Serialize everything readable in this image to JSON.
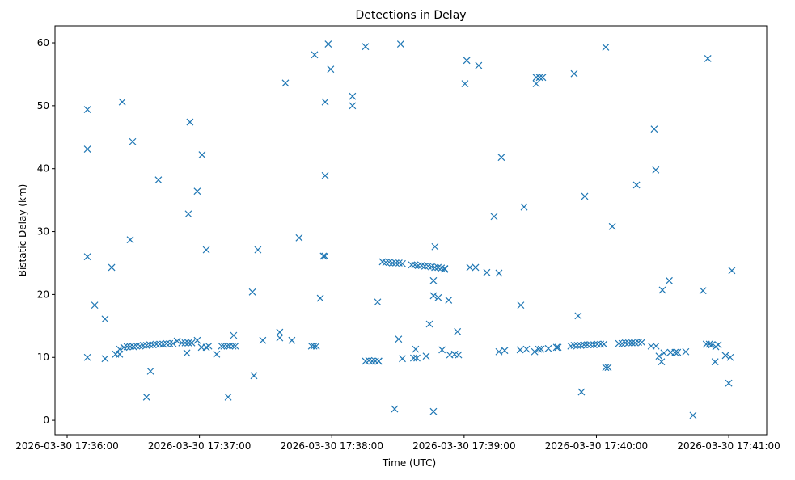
{
  "chart_data": {
    "type": "scatter",
    "title": "Detections in Delay",
    "xlabel": "Time (UTC)",
    "ylabel": "Bistatic Delay (km)",
    "x_units": "seconds after 2026-03-30 17:36:00",
    "xlim": [
      -5.5,
      317.2
    ],
    "ylim": [
      -2.3,
      62.7
    ],
    "grid": false,
    "marker": "x",
    "color": "#1f77b4",
    "x_ticks": [
      {
        "value": 0,
        "label": "2026-03-30 17:36:00"
      },
      {
        "value": 60,
        "label": "2026-03-30 17:37:00"
      },
      {
        "value": 120,
        "label": "2026-03-30 17:38:00"
      },
      {
        "value": 180,
        "label": "2026-03-30 17:39:00"
      },
      {
        "value": 240,
        "label": "2026-03-30 17:40:00"
      },
      {
        "value": 300,
        "label": "2026-03-30 17:41:00"
      }
    ],
    "y_ticks": [
      {
        "value": 0,
        "label": "0"
      },
      {
        "value": 10,
        "label": "10"
      },
      {
        "value": 20,
        "label": "20"
      },
      {
        "value": 30,
        "label": "30"
      },
      {
        "value": 40,
        "label": "40"
      },
      {
        "value": 50,
        "label": "50"
      },
      {
        "value": 60,
        "label": "60"
      }
    ],
    "points": [
      [
        9.2,
        49.4
      ],
      [
        9.2,
        43.1
      ],
      [
        9.2,
        26.0
      ],
      [
        9.2,
        10.0
      ],
      [
        12.5,
        18.3
      ],
      [
        17.2,
        16.1
      ],
      [
        17.2,
        9.8
      ],
      [
        20.2,
        24.3
      ],
      [
        22.0,
        10.5
      ],
      [
        23.8,
        10.5
      ],
      [
        23.8,
        11.3
      ],
      [
        25.0,
        50.6
      ],
      [
        28.6,
        28.7
      ],
      [
        29.7,
        44.3
      ],
      [
        25.7,
        11.6
      ],
      [
        27.2,
        11.7
      ],
      [
        28.6,
        11.7
      ],
      [
        30.1,
        11.7
      ],
      [
        31.5,
        11.8
      ],
      [
        33.0,
        11.8
      ],
      [
        34.5,
        11.9
      ],
      [
        36.0,
        11.9
      ],
      [
        37.5,
        12.0
      ],
      [
        39.0,
        12.0
      ],
      [
        40.5,
        12.1
      ],
      [
        42.0,
        12.1
      ],
      [
        43.5,
        12.1
      ],
      [
        45.0,
        12.2
      ],
      [
        46.5,
        12.2
      ],
      [
        48.0,
        12.2
      ],
      [
        36.0,
        3.7
      ],
      [
        37.8,
        7.8
      ],
      [
        41.4,
        38.2
      ],
      [
        49.9,
        12.6
      ],
      [
        52.0,
        12.3
      ],
      [
        53.5,
        12.3
      ],
      [
        55.0,
        12.3
      ],
      [
        56.5,
        12.3
      ],
      [
        54.3,
        10.7
      ],
      [
        55.0,
        32.8
      ],
      [
        55.7,
        47.4
      ],
      [
        59.0,
        36.4
      ],
      [
        59.0,
        12.7
      ],
      [
        61.2,
        42.2
      ],
      [
        60.9,
        11.6
      ],
      [
        63.1,
        11.6
      ],
      [
        64.2,
        11.8
      ],
      [
        63.1,
        27.1
      ],
      [
        67.8,
        10.5
      ],
      [
        70.0,
        11.8
      ],
      [
        71.1,
        11.8
      ],
      [
        72.6,
        11.8
      ],
      [
        73.7,
        11.8
      ],
      [
        75.2,
        11.8
      ],
      [
        76.3,
        11.8
      ],
      [
        73.0,
        3.7
      ],
      [
        75.5,
        13.5
      ],
      [
        84.0,
        20.4
      ],
      [
        84.7,
        7.1
      ],
      [
        86.5,
        27.1
      ],
      [
        88.7,
        12.7
      ],
      [
        96.4,
        14.0
      ],
      [
        96.4,
        13.1
      ],
      [
        99.0,
        53.6
      ],
      [
        101.9,
        12.7
      ],
      [
        105.2,
        29.0
      ],
      [
        110.8,
        11.8
      ],
      [
        111.9,
        11.8
      ],
      [
        113.0,
        11.8
      ],
      [
        112.2,
        58.1
      ],
      [
        114.8,
        19.4
      ],
      [
        116.2,
        26.1
      ],
      [
        116.9,
        26.1
      ],
      [
        117.0,
        50.6
      ],
      [
        117.0,
        38.9
      ],
      [
        118.4,
        59.8
      ],
      [
        119.5,
        55.8
      ],
      [
        129.4,
        51.5
      ],
      [
        129.4,
        50.0
      ],
      [
        135.3,
        59.4
      ],
      [
        135.3,
        9.4
      ],
      [
        136.8,
        9.5
      ],
      [
        138.3,
        9.4
      ],
      [
        139.8,
        9.4
      ],
      [
        141.3,
        9.4
      ],
      [
        141.3,
        9.4
      ],
      [
        140.8,
        18.8
      ],
      [
        143.0,
        25.2
      ],
      [
        144.5,
        25.1
      ],
      [
        146.0,
        25.1
      ],
      [
        147.5,
        25.0
      ],
      [
        149.0,
        25.0
      ],
      [
        150.5,
        25.0
      ],
      [
        152.0,
        24.9
      ],
      [
        148.5,
        1.8
      ],
      [
        150.3,
        12.9
      ],
      [
        151.2,
        59.8
      ],
      [
        152.0,
        9.8
      ],
      [
        156.2,
        24.7
      ],
      [
        157.7,
        24.7
      ],
      [
        159.2,
        24.6
      ],
      [
        160.7,
        24.6
      ],
      [
        162.2,
        24.5
      ],
      [
        163.7,
        24.5
      ],
      [
        165.2,
        24.4
      ],
      [
        166.7,
        24.3
      ],
      [
        168.2,
        24.3
      ],
      [
        169.7,
        24.2
      ],
      [
        171.2,
        24.1
      ],
      [
        171.2,
        24.0
      ],
      [
        157.1,
        9.9
      ],
      [
        158.6,
        9.9
      ],
      [
        158.0,
        11.3
      ],
      [
        162.8,
        10.2
      ],
      [
        164.3,
        15.3
      ],
      [
        166.1,
        22.2
      ],
      [
        166.1,
        1.4
      ],
      [
        166.8,
        27.6
      ],
      [
        166.1,
        19.8
      ],
      [
        168.3,
        19.5
      ],
      [
        170.0,
        11.2
      ],
      [
        173.0,
        19.1
      ],
      [
        173.5,
        10.4
      ],
      [
        175.7,
        10.5
      ],
      [
        177.5,
        10.4
      ],
      [
        177.0,
        14.1
      ],
      [
        180.4,
        53.5
      ],
      [
        181.2,
        57.2
      ],
      [
        182.6,
        24.3
      ],
      [
        185.2,
        24.3
      ],
      [
        186.6,
        56.4
      ],
      [
        190.3,
        23.5
      ],
      [
        193.6,
        32.4
      ],
      [
        195.8,
        23.4
      ],
      [
        195.8,
        10.9
      ],
      [
        196.9,
        41.8
      ],
      [
        198.4,
        11.1
      ],
      [
        205.7,
        18.3
      ],
      [
        205.4,
        11.2
      ],
      [
        207.2,
        33.9
      ],
      [
        208.3,
        11.3
      ],
      [
        212.7,
        54.5
      ],
      [
        214.2,
        54.5
      ],
      [
        215.6,
        54.5
      ],
      [
        212.7,
        53.5
      ],
      [
        212.0,
        10.9
      ],
      [
        213.8,
        11.3
      ],
      [
        214.9,
        11.3
      ],
      [
        218.2,
        11.4
      ],
      [
        221.9,
        11.6
      ],
      [
        222.6,
        11.6
      ],
      [
        229.9,
        55.1
      ],
      [
        228.4,
        11.8
      ],
      [
        229.9,
        11.9
      ],
      [
        231.4,
        11.9
      ],
      [
        232.9,
        11.9
      ],
      [
        234.4,
        12.0
      ],
      [
        235.9,
        12.0
      ],
      [
        237.4,
        12.0
      ],
      [
        238.9,
        12.0
      ],
      [
        240.4,
        12.1
      ],
      [
        241.9,
        12.1
      ],
      [
        243.4,
        12.1
      ],
      [
        231.7,
        16.6
      ],
      [
        233.2,
        4.5
      ],
      [
        234.7,
        35.6
      ],
      [
        244.2,
        59.3
      ],
      [
        244.2,
        8.4
      ],
      [
        245.3,
        8.4
      ],
      [
        247.2,
        30.8
      ],
      [
        250.1,
        12.2
      ],
      [
        251.6,
        12.2
      ],
      [
        253.1,
        12.3
      ],
      [
        254.6,
        12.3
      ],
      [
        256.1,
        12.3
      ],
      [
        257.6,
        12.3
      ],
      [
        259.1,
        12.4
      ],
      [
        260.6,
        12.4
      ],
      [
        258.2,
        37.4
      ],
      [
        266.2,
        46.3
      ],
      [
        264.8,
        11.8
      ],
      [
        267.0,
        11.8
      ],
      [
        266.9,
        39.8
      ],
      [
        268.4,
        10.2
      ],
      [
        269.5,
        9.3
      ],
      [
        269.9,
        20.7
      ],
      [
        270.6,
        10.7
      ],
      [
        273.6,
        10.8
      ],
      [
        275.7,
        10.8
      ],
      [
        276.8,
        10.8
      ],
      [
        273.0,
        22.2
      ],
      [
        280.5,
        10.9
      ],
      [
        283.8,
        0.8
      ],
      [
        288.3,
        20.6
      ],
      [
        290.5,
        57.5
      ],
      [
        289.8,
        12.1
      ],
      [
        291.2,
        12.1
      ],
      [
        292.3,
        12.0
      ],
      [
        293.8,
        9.3
      ],
      [
        294.1,
        11.7
      ],
      [
        295.2,
        12.0
      ],
      [
        298.5,
        10.3
      ],
      [
        300.7,
        10.0
      ],
      [
        300.0,
        5.9
      ],
      [
        301.4,
        23.8
      ]
    ]
  }
}
